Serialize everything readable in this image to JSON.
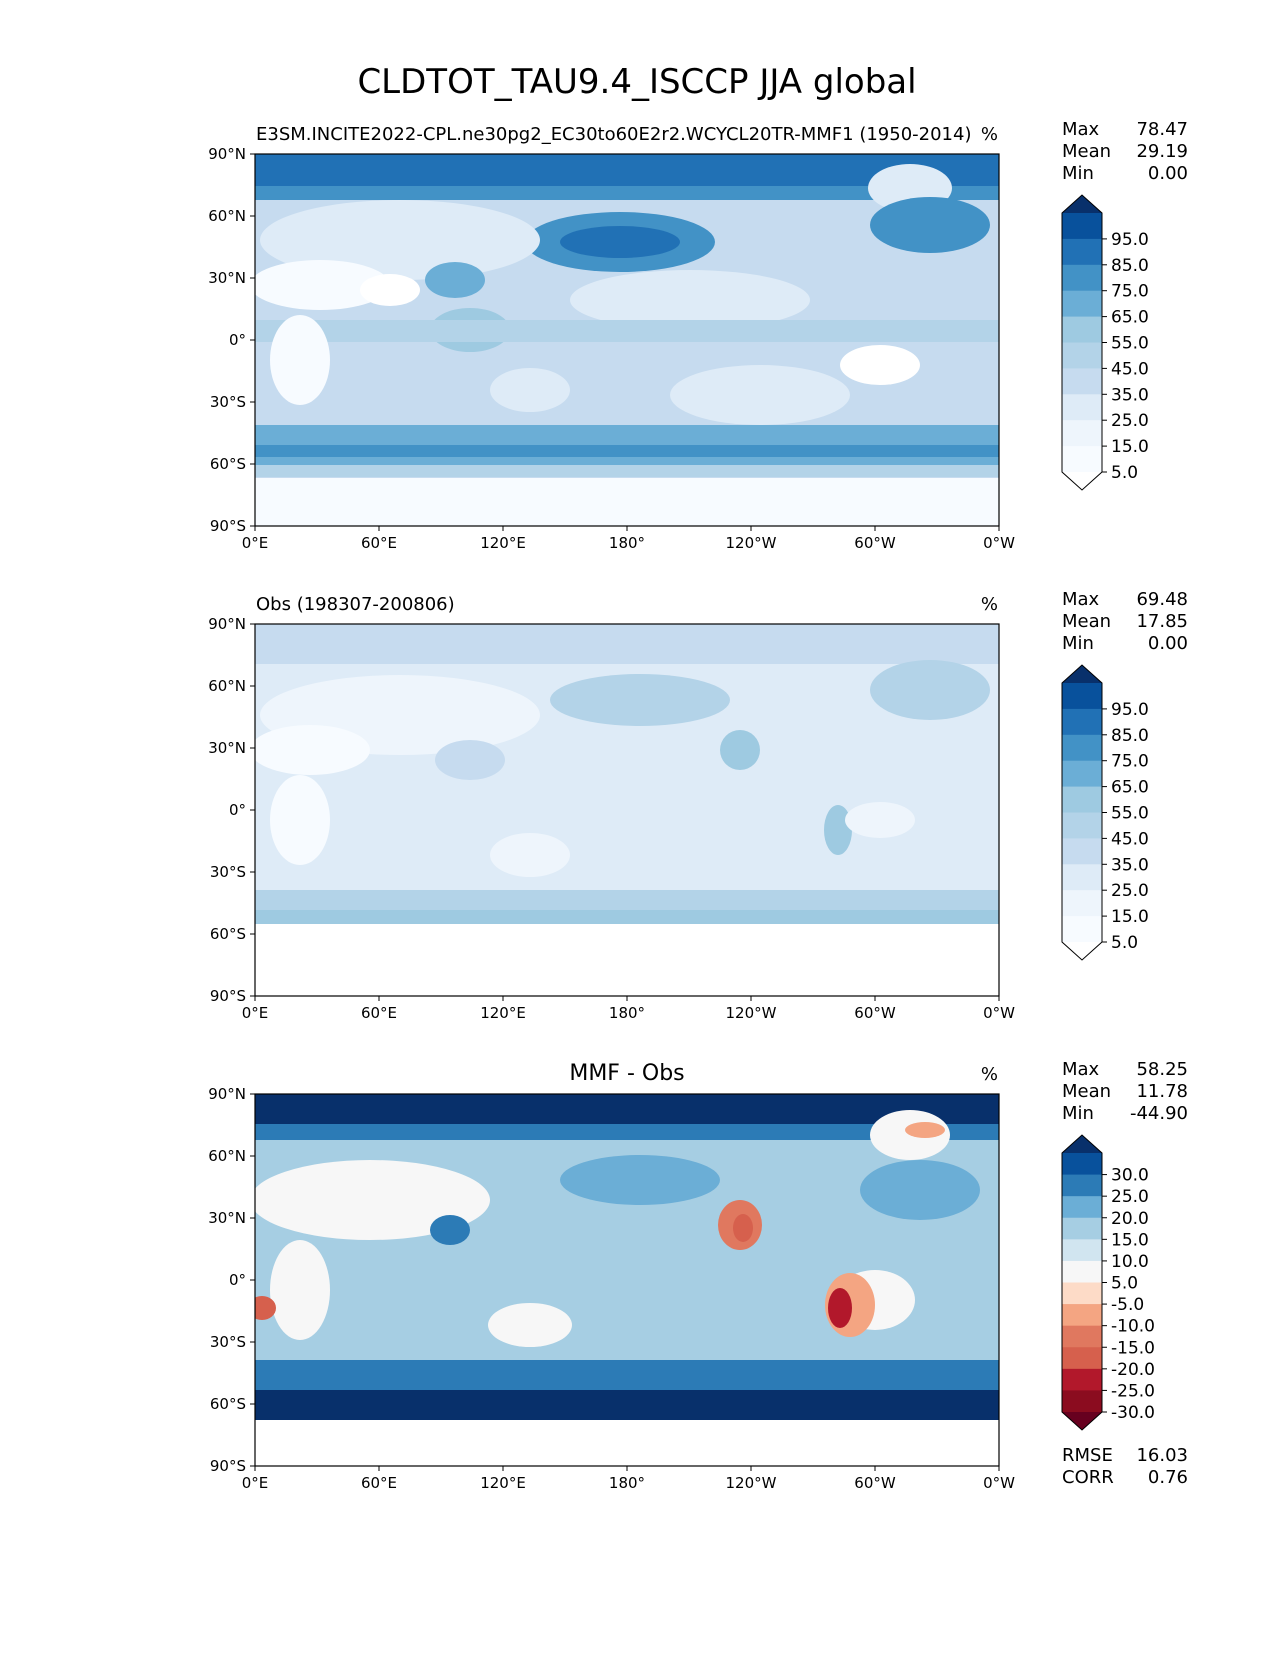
{
  "figure": {
    "title": "CLDTOT_TAU9.4_ISCCP JJA global"
  },
  "lat_ticks": [
    "90°N",
    "60°N",
    "30°N",
    "0°",
    "30°S",
    "60°S",
    "90°S"
  ],
  "lon_ticks": [
    "0°E",
    "60°E",
    "120°E",
    "180°",
    "120°W",
    "60°W",
    "0°W"
  ],
  "panels": [
    {
      "id": "model",
      "left_title": "E3SM.INCITE2022-CPL.ne30pg2_EC30to60E2r2.WCYCL20TR-MMF1 (1950-2014)",
      "center_title": "",
      "units": "%",
      "stats": {
        "max_label": "Max",
        "max": "78.47",
        "mean_label": "Mean",
        "mean": "29.19",
        "min_label": "Min",
        "min": "0.00"
      },
      "colorbar": {
        "labels": [
          "95.0",
          "85.0",
          "75.0",
          "65.0",
          "55.0",
          "45.0",
          "35.0",
          "25.0",
          "15.0",
          "5.0"
        ],
        "colors": [
          "#08306b",
          "#08519c",
          "#2171b5",
          "#4292c6",
          "#6baed6",
          "#9ecae1",
          "#b3d3e8",
          "#c6dbef",
          "#deebf7",
          "#eef5fc",
          "#f7fbff",
          "#ffffff"
        ]
      }
    },
    {
      "id": "obs",
      "left_title": "Obs (198307-200806)",
      "center_title": "",
      "units": "%",
      "stats": {
        "max_label": "Max",
        "max": "69.48",
        "mean_label": "Mean",
        "mean": "17.85",
        "min_label": "Min",
        "min": "0.00"
      },
      "colorbar": {
        "labels": [
          "95.0",
          "85.0",
          "75.0",
          "65.0",
          "55.0",
          "45.0",
          "35.0",
          "25.0",
          "15.0",
          "5.0"
        ],
        "colors": [
          "#08306b",
          "#08519c",
          "#2171b5",
          "#4292c6",
          "#6baed6",
          "#9ecae1",
          "#b3d3e8",
          "#c6dbef",
          "#deebf7",
          "#eef5fc",
          "#f7fbff",
          "#ffffff"
        ]
      }
    },
    {
      "id": "diff",
      "left_title": "",
      "center_title": "MMF - Obs",
      "units": "%",
      "stats": {
        "max_label": "Max",
        "max": "58.25",
        "mean_label": "Mean",
        "mean": "11.78",
        "min_label": "Min",
        "min": "-44.90"
      },
      "colorbar": {
        "labels": [
          "30.0",
          "25.0",
          "20.0",
          "15.0",
          "10.0",
          "5.0",
          "-5.0",
          "-10.0",
          "-15.0",
          "-20.0",
          "-25.0",
          "-30.0"
        ],
        "colors": [
          "#08306b",
          "#08519c",
          "#2c7bb6",
          "#6baed6",
          "#a6cee3",
          "#d1e5f0",
          "#f7f7f7",
          "#fddbc7",
          "#f4a582",
          "#e0785f",
          "#d6604d",
          "#b2182b",
          "#8b0c1f",
          "#67001f"
        ]
      },
      "rmse_label": "RMSE",
      "rmse": "16.03",
      "corr_label": "CORR",
      "corr": "0.76"
    }
  ]
}
